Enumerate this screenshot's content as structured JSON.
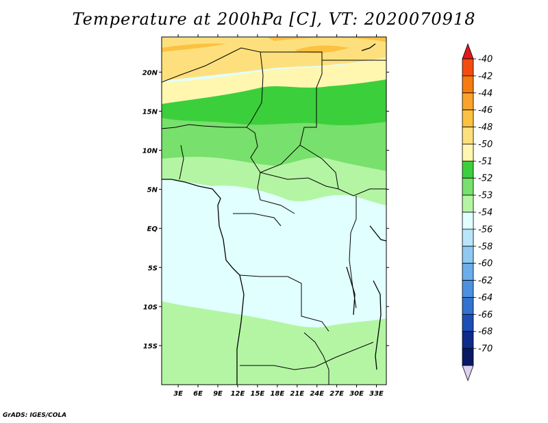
{
  "title": "Temperature at 200hPa [C], VT: 2020070918",
  "credit": "GrADS: IGES/COLA",
  "map": {
    "lat_labels": [
      "20N",
      "15N",
      "10N",
      "5N",
      "EQ",
      "5S",
      "10S",
      "15S"
    ],
    "lon_labels": [
      "3E",
      "6E",
      "9E",
      "12E",
      "15E",
      "18E",
      "21E",
      "24E",
      "27E",
      "30E",
      "33E"
    ],
    "extent": {
      "lon_min": 0.5,
      "lon_max": 34.5,
      "lat_min": -20,
      "lat_max": 24.5
    }
  },
  "colorbar": {
    "labels": [
      "-40",
      "-42",
      "-44",
      "-46",
      "-48",
      "-50",
      "-51",
      "-52",
      "-53",
      "-54",
      "-56",
      "-58",
      "-60",
      "-62",
      "-64",
      "-66",
      "-68",
      "-70"
    ],
    "colors": [
      "#e0191c",
      "#f24d0f",
      "#f57a10",
      "#f9a32c",
      "#fbc141",
      "#fde07d",
      "#fff6b0",
      "#3ccf3c",
      "#78e06c",
      "#b4f5a4",
      "#e1ffff",
      "#b8e5f9",
      "#8fc9f1",
      "#6aaeea",
      "#4c91df",
      "#3372cf",
      "#1c4eb5",
      "#0d2c8a",
      "#0a1964",
      "#dcd2f0"
    ]
  }
}
